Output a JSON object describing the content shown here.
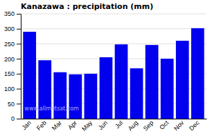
{
  "chart_data": {
    "type": "bar",
    "title": "Kanazawa : precipitation (mm)",
    "categories": [
      "Jan",
      "Feb",
      "Mar",
      "Apr",
      "May",
      "Jun",
      "Jul",
      "Aug",
      "Sep",
      "Oct",
      "Nov",
      "Dec"
    ],
    "values": [
      290,
      195,
      155,
      148,
      150,
      205,
      248,
      168,
      246,
      200,
      260,
      302
    ],
    "color": "#0000ee",
    "ylim": [
      0,
      350
    ],
    "yticks": [
      0,
      50,
      100,
      150,
      200,
      250,
      300,
      350
    ],
    "grid": true,
    "annotations": [
      "www.allmetsat.com"
    ]
  }
}
